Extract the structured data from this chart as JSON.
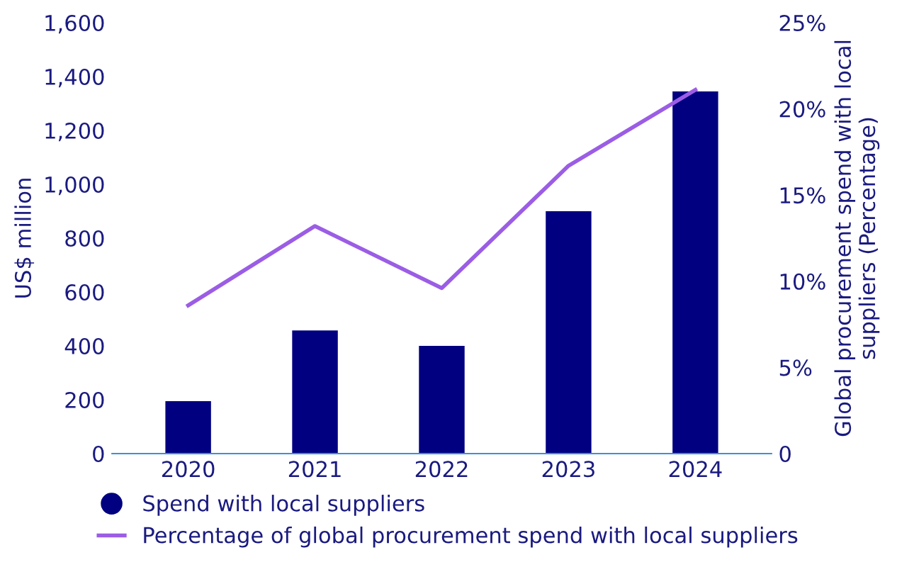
{
  "chart_data": {
    "type": "bar",
    "categories": [
      "2020",
      "2021",
      "2022",
      "2023",
      "2024"
    ],
    "ylabel": "US$ million",
    "y2label": "Global procurement spend with local suppliers (Percentage)",
    "ylim": [
      0,
      1600
    ],
    "yticks": [
      {
        "value": 0,
        "label": "0"
      },
      {
        "value": 200,
        "label": "200"
      },
      {
        "value": 400,
        "label": "400"
      },
      {
        "value": 600,
        "label": "600"
      },
      {
        "value": 800,
        "label": "800"
      },
      {
        "value": 1000,
        "label": "1,000"
      },
      {
        "value": 1200,
        "label": "1,200"
      },
      {
        "value": 1400,
        "label": "1,400"
      },
      {
        "value": 1600,
        "label": "1,600"
      }
    ],
    "y2lim": [
      0,
      25
    ],
    "y2ticks": [
      {
        "value": 0,
        "label": "0"
      },
      {
        "value": 5,
        "label": "5%"
      },
      {
        "value": 10,
        "label": "10%"
      },
      {
        "value": 15,
        "label": "15%"
      },
      {
        "value": 20,
        "label": "20%"
      },
      {
        "value": 25,
        "label": "25%"
      }
    ],
    "grid": false,
    "legend": "bottom",
    "series": [
      {
        "name": "Spend with local suppliers",
        "color": "#000080",
        "values": [
          195,
          457,
          400,
          900,
          1345
        ]
      },
      {
        "name": "Percentage of global procurement spend with local suppliers",
        "type": "line",
        "axis": "y2",
        "color": "#9b5de5",
        "values": [
          8.6,
          13.2,
          9.6,
          16.7,
          21.1
        ]
      }
    ]
  }
}
